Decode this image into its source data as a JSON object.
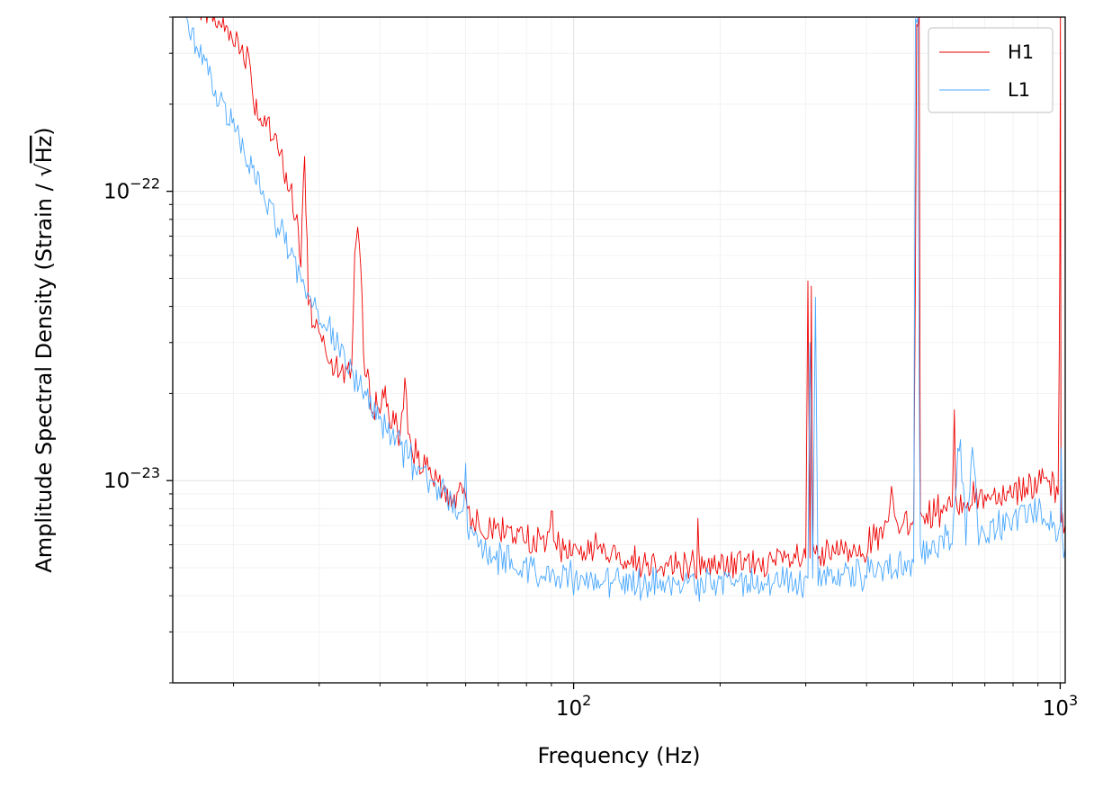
{
  "chart_data": {
    "type": "line",
    "title": "",
    "xlabel": "Frequency (Hz)",
    "ylabel": "Amplitude Spectral Density (Strain / √Hz)",
    "ylabel_prefix": "Amplitude Spectral Density (Strain / ",
    "ylabel_sqrt": "√",
    "ylabel_hz": "Hz",
    "ylabel_suffix": ")",
    "xscale": "log",
    "yscale": "log",
    "xlim": [
      15,
      1024
    ],
    "ylim": [
      2e-24,
      4e-22
    ],
    "grid": true,
    "legend_position": "top-right",
    "x_tick_labels": [
      {
        "value": 100,
        "base": "10",
        "exp": "2"
      },
      {
        "value": 1000,
        "base": "10",
        "exp": "3"
      }
    ],
    "y_tick_labels": [
      {
        "value": 1e-23,
        "base": "10",
        "exp": "−23"
      },
      {
        "value": 1e-22,
        "base": "10",
        "exp": "−22"
      }
    ],
    "series": [
      {
        "name": "H1",
        "color": "#ee0000",
        "x": [
          16,
          18,
          20,
          21,
          21.5,
          22,
          23,
          24,
          25,
          26,
          27,
          27.5,
          28,
          28.5,
          29,
          30,
          31,
          32,
          33,
          34,
          35,
          35.5,
          36,
          36.5,
          37,
          38,
          40,
          41,
          42,
          44,
          45,
          46,
          47,
          48,
          50,
          52,
          55,
          58,
          60,
          61,
          62,
          65,
          70,
          75,
          80,
          85,
          89,
          90,
          91,
          95,
          100,
          105,
          110,
          111,
          112,
          120,
          130,
          150,
          170,
          179,
          180,
          181,
          200,
          220,
          250,
          280,
          300,
          303,
          306,
          308,
          310,
          312,
          320,
          350,
          400,
          440,
          450,
          460,
          480,
          500,
          504,
          507,
          510,
          513,
          516,
          520,
          550,
          600,
          606,
          610,
          620,
          650,
          700,
          800,
          900,
          950,
          990,
          995,
          998,
          1001,
          1004,
          1010,
          1024
        ],
        "y": [
          5e-22,
          4e-22,
          3.5e-22,
          3e-22,
          3e-22,
          2.1e-22,
          1.7e-22,
          1.55e-22,
          1.3e-22,
          1.05e-22,
          8e-23,
          5.5e-23,
          1.3e-22,
          4.5e-23,
          3.7e-23,
          3.3e-23,
          3e-23,
          2.6e-23,
          2.4e-23,
          2.35e-23,
          2.6e-23,
          6e-23,
          7.5e-23,
          5.5e-23,
          2.6e-23,
          2e-23,
          1.75e-23,
          2.1e-23,
          1.6e-23,
          1.45e-23,
          2.1e-23,
          1.4e-23,
          1.25e-23,
          1.2e-23,
          1.05e-23,
          9.8e-24,
          9e-24,
          8.5e-24,
          9.5e-24,
          7.8e-24,
          7.5e-24,
          7e-24,
          6.8e-24,
          6.6e-24,
          6.3e-24,
          6.1e-24,
          6.1e-24,
          8.5e-24,
          6.1e-24,
          5.9e-24,
          5.8e-24,
          5.7e-24,
          5.6e-24,
          7.5e-24,
          5.6e-24,
          5.5e-24,
          5.3e-24,
          5.2e-24,
          5.1e-24,
          5.1e-24,
          6.8e-24,
          5.1e-24,
          5.1e-24,
          5.1e-24,
          5.2e-24,
          5.3e-24,
          5.4e-24,
          4.9e-23,
          5.4e-24,
          4.7e-23,
          5.4e-24,
          5.4e-24,
          5.5e-24,
          5.6e-24,
          6e-24,
          6.6e-24,
          9e-24,
          6.9e-24,
          7.1e-24,
          7.3e-24,
          5.2e-23,
          4e-22,
          4e-22,
          4e-22,
          7.5e-24,
          7.5e-24,
          7.8e-24,
          8.1e-24,
          1.6e-23,
          8.2e-24,
          8.4e-24,
          8.6e-24,
          8.8e-24,
          9.3e-24,
          9.8e-24,
          9.6e-24,
          9e-24,
          2.5e-23,
          5.8e-23,
          4e-22,
          8e-24,
          7.5e-24,
          7e-24
        ]
      },
      {
        "name": "L1",
        "color": "#4aa8ff",
        "x": [
          16,
          17,
          18,
          19,
          20,
          21,
          22,
          23,
          24,
          25,
          26,
          27,
          28,
          29,
          30,
          32,
          34,
          36,
          38,
          40,
          42,
          45,
          48,
          50,
          55,
          59.5,
          60,
          60.5,
          62,
          65,
          70,
          75,
          80,
          90,
          100,
          110,
          120,
          140,
          160,
          180,
          200,
          220,
          250,
          280,
          300,
          303,
          306,
          310,
          314,
          318,
          330,
          350,
          400,
          450,
          500,
          504,
          507,
          510,
          513,
          516,
          520,
          550,
          600,
          620,
          640,
          660,
          680,
          700,
          800,
          850,
          900,
          950,
          1000,
          1005,
          1010,
          1024
        ],
        "y": [
          4e-22,
          3e-22,
          2.4e-22,
          2e-22,
          1.65e-22,
          1.4e-22,
          1.2e-22,
          1e-22,
          8.5e-23,
          7.2e-23,
          6.2e-23,
          5.5e-23,
          4.8e-23,
          4.3e-23,
          3.8e-23,
          3.1e-23,
          2.6e-23,
          2.2e-23,
          1.9e-23,
          1.65e-23,
          1.45e-23,
          1.25e-23,
          1.1e-23,
          1e-23,
          8.8e-24,
          7.8e-24,
          1.2e-23,
          6.5e-24,
          6.1e-24,
          5.8e-24,
          5.4e-24,
          5.2e-24,
          4.9e-24,
          4.7e-24,
          4.6e-24,
          4.5e-24,
          4.5e-24,
          4.4e-24,
          4.4e-24,
          4.4e-24,
          4.4e-24,
          4.4e-24,
          4.4e-24,
          4.5e-24,
          4.5e-24,
          4.6e-24,
          3e-23,
          4.6e-24,
          4.3e-23,
          4.6e-24,
          4.6e-24,
          4.6e-24,
          4.8e-24,
          5e-24,
          5.2e-24,
          4e-22,
          4e-22,
          4e-22,
          2e-23,
          5.6e-24,
          5.7e-24,
          6e-24,
          6.4e-24,
          1.4e-23,
          6.5e-24,
          1.3e-23,
          6.6e-24,
          6.7e-24,
          7.4e-24,
          7.8e-24,
          7.9e-24,
          7.3e-24,
          6.5e-24,
          1.2e-23,
          6e-24,
          5.8e-24
        ]
      }
    ]
  }
}
